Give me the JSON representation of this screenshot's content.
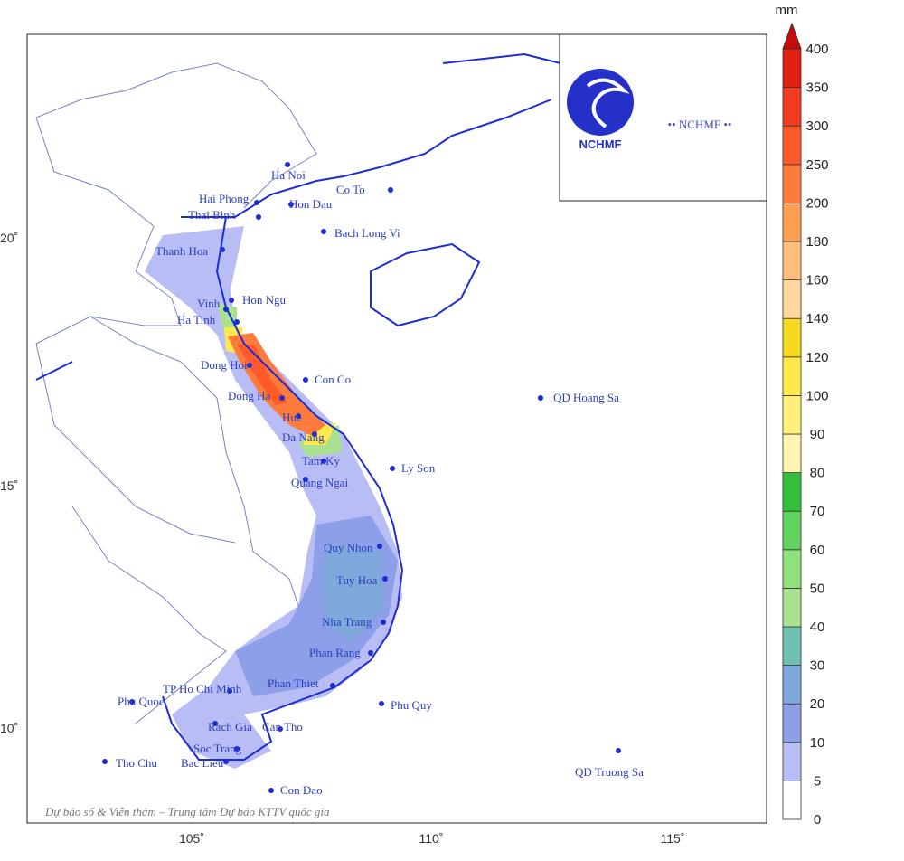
{
  "map": {
    "places": [
      "Ha Noi",
      "Hai Phong",
      "Thai Binh",
      "Co To",
      "Hon Dau",
      "Bach Long Vi",
      "Thanh Hoa",
      "Hon Ngu",
      "Vinh",
      "Ha Tinh",
      "Dong Hoi",
      "Con Co",
      "Dong Ha",
      "Hue",
      "Da Nang",
      "Tam Ky",
      "Ly Son",
      "Quang Ngai",
      "QD Hoang Sa",
      "Quy Nhon",
      "Tuy Hoa",
      "Nha Trang",
      "Phan Rang",
      "Phan Thiet",
      "TP Ho Chi Minh",
      "Phu Quoc",
      "Phu Quy",
      "Rach Gia",
      "Can Tho",
      "Soc Trang",
      "Bac Lieu",
      "Tho Chu",
      "Con Dao",
      "QD Truong Sa"
    ],
    "lat_labels": [
      "20˚",
      "15˚",
      "10˚"
    ],
    "lon_labels": [
      "105˚",
      "110˚",
      "115˚"
    ],
    "logo_text": "NCHMF",
    "logo_banner": "•• NCHMF ••",
    "credit": "Dự báo số & Viễn thám – Trung tâm Dự báo KTTV quốc gia"
  },
  "legend": {
    "unit": "mm",
    "ticks": [
      0,
      5,
      10,
      20,
      30,
      40,
      50,
      60,
      70,
      80,
      90,
      100,
      120,
      140,
      160,
      180,
      200,
      250,
      300,
      350,
      400
    ],
    "colors": [
      "#ffffff",
      "#b9bdf6",
      "#8c9fe8",
      "#7fa8dc",
      "#6fc2b2",
      "#a9e190",
      "#90e07c",
      "#5fd35e",
      "#31bf3c",
      "#fff4ae",
      "#fff07c",
      "#ffe84c",
      "#f6da22",
      "#ffd79c",
      "#ffbf7c",
      "#ff9f52",
      "#ff7b3c",
      "#ff5b2a",
      "#f33b1f",
      "#e01f15"
    ],
    "over_color": "#c80c0c"
  }
}
